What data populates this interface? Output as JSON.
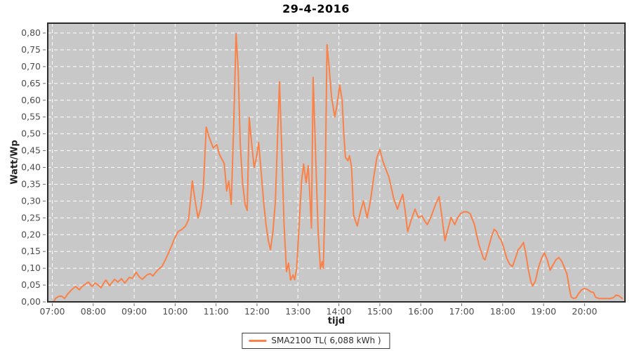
{
  "window": {
    "title": "29-4-2016"
  },
  "colors": {
    "line": "#fa8148",
    "plot_background": "#c8c8c8",
    "gridline": "#ffffff",
    "plot_border": "#2b2b2b",
    "tick_mark": "#6e6e6e",
    "tick_label": "#4d4d4d",
    "page_background": "#ffffff",
    "legend_border": "#3a3a3a"
  },
  "chart_data": {
    "type": "line",
    "title": "29-4-2016",
    "xlabel": "tijd",
    "ylabel": "Watt/Wp",
    "legend_position": "bottom-center",
    "grid": "white dashed on gray",
    "xlim": [
      6.889,
      20.988
    ],
    "ylim": [
      0,
      0.8293
    ],
    "x_ticks": [
      {
        "label": "07:00",
        "value": 7
      },
      {
        "label": "08:00",
        "value": 8
      },
      {
        "label": "09:00",
        "value": 9
      },
      {
        "label": "10:00",
        "value": 10
      },
      {
        "label": "11:00",
        "value": 11
      },
      {
        "label": "12:00",
        "value": 12
      },
      {
        "label": "13:00",
        "value": 13
      },
      {
        "label": "14:00",
        "value": 14
      },
      {
        "label": "15:00",
        "value": 15
      },
      {
        "label": "16:00",
        "value": 16
      },
      {
        "label": "17:00",
        "value": 17
      },
      {
        "label": "18:00",
        "value": 18
      },
      {
        "label": "19:00",
        "value": 19
      },
      {
        "label": "20:00",
        "value": 20
      }
    ],
    "y_ticks": [
      {
        "label": "0,00",
        "value": 0.0
      },
      {
        "label": "0,05",
        "value": 0.05
      },
      {
        "label": "0,10",
        "value": 0.1
      },
      {
        "label": "0,15",
        "value": 0.15
      },
      {
        "label": "0,20",
        "value": 0.2
      },
      {
        "label": "0,25",
        "value": 0.25
      },
      {
        "label": "0,30",
        "value": 0.3
      },
      {
        "label": "0,35",
        "value": 0.35
      },
      {
        "label": "0,40",
        "value": 0.4
      },
      {
        "label": "0,45",
        "value": 0.45
      },
      {
        "label": "0,50",
        "value": 0.5
      },
      {
        "label": "0,55",
        "value": 0.55
      },
      {
        "label": "0,60",
        "value": 0.6
      },
      {
        "label": "0,65",
        "value": 0.65
      },
      {
        "label": "0,70",
        "value": 0.7
      },
      {
        "label": "0,75",
        "value": 0.75
      },
      {
        "label": "0,80",
        "value": 0.8
      }
    ],
    "series": [
      {
        "name": "SMA2100 TL( 6,088 kWh )",
        "color": "#fa8148",
        "x_unit": "hours",
        "points": [
          [
            7.03,
            0.0
          ],
          [
            7.08,
            0.01
          ],
          [
            7.15,
            0.016
          ],
          [
            7.23,
            0.017
          ],
          [
            7.3,
            0.01
          ],
          [
            7.38,
            0.024
          ],
          [
            7.49,
            0.038
          ],
          [
            7.57,
            0.046
          ],
          [
            7.66,
            0.036
          ],
          [
            7.73,
            0.046
          ],
          [
            7.8,
            0.052
          ],
          [
            7.88,
            0.059
          ],
          [
            7.97,
            0.046
          ],
          [
            8.05,
            0.056
          ],
          [
            8.12,
            0.05
          ],
          [
            8.19,
            0.042
          ],
          [
            8.25,
            0.055
          ],
          [
            8.31,
            0.065
          ],
          [
            8.4,
            0.048
          ],
          [
            8.46,
            0.058
          ],
          [
            8.52,
            0.067
          ],
          [
            8.6,
            0.059
          ],
          [
            8.69,
            0.069
          ],
          [
            8.77,
            0.056
          ],
          [
            8.88,
            0.073
          ],
          [
            8.96,
            0.07
          ],
          [
            9.05,
            0.088
          ],
          [
            9.12,
            0.075
          ],
          [
            9.2,
            0.067
          ],
          [
            9.31,
            0.08
          ],
          [
            9.39,
            0.084
          ],
          [
            9.46,
            0.077
          ],
          [
            9.54,
            0.09
          ],
          [
            9.6,
            0.098
          ],
          [
            9.68,
            0.105
          ],
          [
            9.78,
            0.13
          ],
          [
            9.89,
            0.16
          ],
          [
            9.99,
            0.19
          ],
          [
            10.08,
            0.21
          ],
          [
            10.16,
            0.215
          ],
          [
            10.25,
            0.225
          ],
          [
            10.33,
            0.245
          ],
          [
            10.42,
            0.36
          ],
          [
            10.49,
            0.3
          ],
          [
            10.56,
            0.25
          ],
          [
            10.63,
            0.28
          ],
          [
            10.69,
            0.34
          ],
          [
            10.76,
            0.52
          ],
          [
            10.83,
            0.49
          ],
          [
            10.93,
            0.458
          ],
          [
            11.02,
            0.468
          ],
          [
            11.08,
            0.44
          ],
          [
            11.14,
            0.425
          ],
          [
            11.2,
            0.412
          ],
          [
            11.26,
            0.33
          ],
          [
            11.31,
            0.36
          ],
          [
            11.37,
            0.29
          ],
          [
            11.43,
            0.52
          ],
          [
            11.49,
            0.798
          ],
          [
            11.54,
            0.69
          ],
          [
            11.59,
            0.47
          ],
          [
            11.65,
            0.35
          ],
          [
            11.71,
            0.29
          ],
          [
            11.76,
            0.272
          ],
          [
            11.81,
            0.548
          ],
          [
            11.87,
            0.47
          ],
          [
            11.93,
            0.4
          ],
          [
            11.98,
            0.425
          ],
          [
            12.04,
            0.474
          ],
          [
            12.1,
            0.39
          ],
          [
            12.16,
            0.3
          ],
          [
            12.22,
            0.23
          ],
          [
            12.28,
            0.18
          ],
          [
            12.33,
            0.155
          ],
          [
            12.39,
            0.21
          ],
          [
            12.45,
            0.3
          ],
          [
            12.5,
            0.48
          ],
          [
            12.55,
            0.655
          ],
          [
            12.6,
            0.47
          ],
          [
            12.66,
            0.23
          ],
          [
            12.72,
            0.09
          ],
          [
            12.77,
            0.115
          ],
          [
            12.82,
            0.065
          ],
          [
            12.88,
            0.08
          ],
          [
            12.92,
            0.066
          ],
          [
            12.97,
            0.1
          ],
          [
            13.03,
            0.23
          ],
          [
            13.09,
            0.36
          ],
          [
            13.14,
            0.41
          ],
          [
            13.2,
            0.355
          ],
          [
            13.25,
            0.405
          ],
          [
            13.29,
            0.32
          ],
          [
            13.33,
            0.22
          ],
          [
            13.37,
            0.668
          ],
          [
            13.42,
            0.48
          ],
          [
            13.49,
            0.215
          ],
          [
            13.55,
            0.098
          ],
          [
            13.59,
            0.12
          ],
          [
            13.62,
            0.1
          ],
          [
            13.66,
            0.3
          ],
          [
            13.71,
            0.765
          ],
          [
            13.76,
            0.7
          ],
          [
            13.82,
            0.61
          ],
          [
            13.9,
            0.55
          ],
          [
            13.96,
            0.59
          ],
          [
            14.02,
            0.645
          ],
          [
            14.08,
            0.6
          ],
          [
            14.12,
            0.5
          ],
          [
            14.16,
            0.43
          ],
          [
            14.22,
            0.42
          ],
          [
            14.26,
            0.435
          ],
          [
            14.31,
            0.4
          ],
          [
            14.36,
            0.257
          ],
          [
            14.45,
            0.226
          ],
          [
            14.53,
            0.27
          ],
          [
            14.6,
            0.3
          ],
          [
            14.69,
            0.25
          ],
          [
            14.77,
            0.3
          ],
          [
            14.85,
            0.37
          ],
          [
            14.93,
            0.43
          ],
          [
            15.0,
            0.453
          ],
          [
            15.07,
            0.42
          ],
          [
            15.14,
            0.397
          ],
          [
            15.22,
            0.372
          ],
          [
            15.28,
            0.34
          ],
          [
            15.34,
            0.307
          ],
          [
            15.43,
            0.276
          ],
          [
            15.5,
            0.3
          ],
          [
            15.56,
            0.32
          ],
          [
            15.62,
            0.27
          ],
          [
            15.68,
            0.209
          ],
          [
            15.77,
            0.245
          ],
          [
            15.86,
            0.276
          ],
          [
            15.94,
            0.251
          ],
          [
            16.03,
            0.256
          ],
          [
            16.1,
            0.24
          ],
          [
            16.16,
            0.23
          ],
          [
            16.24,
            0.25
          ],
          [
            16.37,
            0.293
          ],
          [
            16.45,
            0.313
          ],
          [
            16.52,
            0.25
          ],
          [
            16.59,
            0.182
          ],
          [
            16.67,
            0.22
          ],
          [
            16.74,
            0.251
          ],
          [
            16.83,
            0.23
          ],
          [
            16.9,
            0.25
          ],
          [
            16.97,
            0.262
          ],
          [
            17.05,
            0.268
          ],
          [
            17.13,
            0.268
          ],
          [
            17.21,
            0.262
          ],
          [
            17.31,
            0.23
          ],
          [
            17.42,
            0.17
          ],
          [
            17.53,
            0.13
          ],
          [
            17.57,
            0.125
          ],
          [
            17.65,
            0.16
          ],
          [
            17.73,
            0.195
          ],
          [
            17.79,
            0.216
          ],
          [
            17.85,
            0.21
          ],
          [
            17.92,
            0.19
          ],
          [
            17.96,
            0.185
          ],
          [
            18.03,
            0.16
          ],
          [
            18.1,
            0.13
          ],
          [
            18.17,
            0.112
          ],
          [
            18.24,
            0.105
          ],
          [
            18.31,
            0.13
          ],
          [
            18.38,
            0.155
          ],
          [
            18.45,
            0.165
          ],
          [
            18.51,
            0.177
          ],
          [
            18.57,
            0.14
          ],
          [
            18.63,
            0.095
          ],
          [
            18.69,
            0.06
          ],
          [
            18.73,
            0.047
          ],
          [
            18.8,
            0.062
          ],
          [
            18.87,
            0.1
          ],
          [
            18.95,
            0.13
          ],
          [
            19.02,
            0.146
          ],
          [
            19.09,
            0.125
          ],
          [
            19.16,
            0.094
          ],
          [
            19.23,
            0.11
          ],
          [
            19.3,
            0.125
          ],
          [
            19.37,
            0.132
          ],
          [
            19.45,
            0.12
          ],
          [
            19.52,
            0.098
          ],
          [
            19.57,
            0.084
          ],
          [
            19.63,
            0.04
          ],
          [
            19.67,
            0.015
          ],
          [
            19.73,
            0.01
          ],
          [
            19.79,
            0.012
          ],
          [
            19.86,
            0.025
          ],
          [
            19.93,
            0.036
          ],
          [
            20.0,
            0.04
          ],
          [
            20.07,
            0.037
          ],
          [
            20.15,
            0.03
          ],
          [
            20.22,
            0.028
          ],
          [
            20.27,
            0.014
          ],
          [
            20.35,
            0.01
          ],
          [
            20.45,
            0.01
          ],
          [
            20.55,
            0.01
          ],
          [
            20.63,
            0.01
          ],
          [
            20.7,
            0.012
          ],
          [
            20.77,
            0.02
          ],
          [
            20.84,
            0.018
          ],
          [
            20.92,
            0.01
          ]
        ]
      }
    ],
    "legend": [
      {
        "label": "SMA2100 TL( 6,088 kWh )",
        "swatch": "line-swatch",
        "color": "#fa8148"
      }
    ]
  }
}
